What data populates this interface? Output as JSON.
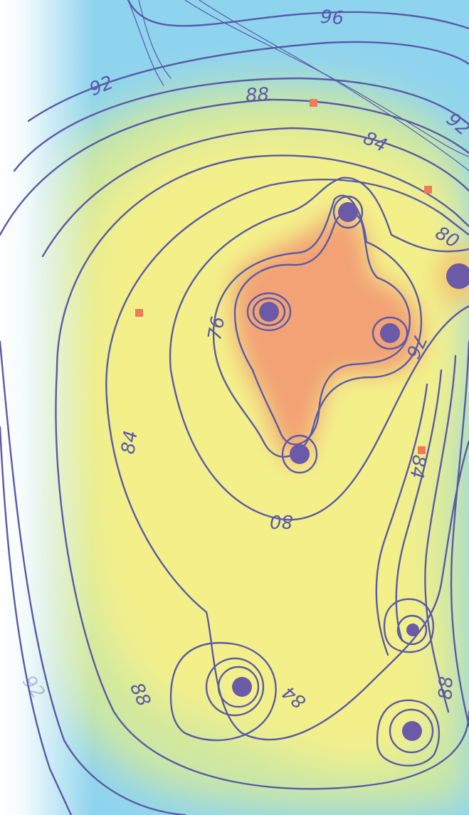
{
  "map": {
    "colors": {
      "background": "#ffffff",
      "contour_line": "#5a5aa8",
      "contour_label": "#5a5aa8",
      "center_dot": "#6a5aa8",
      "station_marker": "#f07a5a",
      "color_ramp": [
        "#ffffff",
        "#8fd4ee",
        "#a6dde9",
        "#cfe8a0",
        "#f3f08a",
        "#f7c56a",
        "#f2a274"
      ]
    },
    "contour_labels": [
      "96",
      "92",
      "88",
      "92",
      "84",
      "80",
      "76",
      "76",
      "84",
      "84",
      "80",
      "88",
      "84",
      "88",
      "92"
    ],
    "center_markers": [
      "center-1",
      "center-2",
      "center-3",
      "center-4",
      "center-5",
      "center-6",
      "center-7",
      "center-8"
    ],
    "station_markers": [
      "station-1",
      "station-2",
      "station-3",
      "station-4"
    ]
  }
}
